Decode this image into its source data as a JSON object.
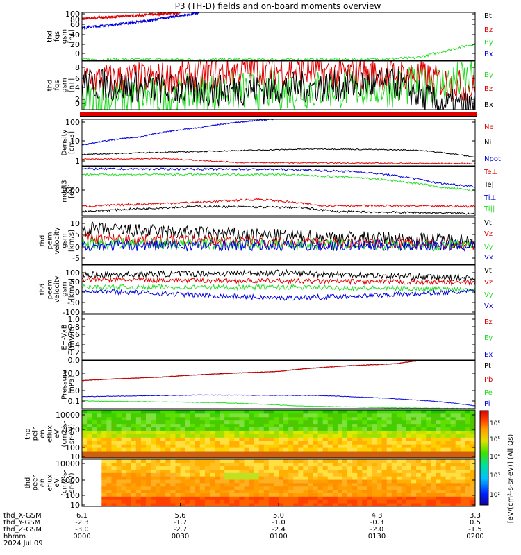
{
  "title": "P3 (TH-D) fields and on-board moments overview",
  "colors": {
    "black": "#000000",
    "red": "#e00000",
    "green": "#22dd22",
    "blue": "#0000dd"
  },
  "chart_data": [
    {
      "type": "line",
      "ylabel": [
        "thd",
        "fgs",
        "gsm",
        "[nT]"
      ],
      "ytick_labels": [
        "100",
        "80",
        "60",
        "40",
        "20",
        "0"
      ],
      "ylim": [
        -10,
        105
      ],
      "series": [
        {
          "name": "Bt",
          "color": "#000000"
        },
        {
          "name": "Bz",
          "color": "#e00000",
          "points": [
            [
              0,
              90
            ],
            [
              0.25,
              104
            ]
          ]
        },
        {
          "name": "By",
          "color": "#22dd22",
          "points": [
            [
              0,
              -8
            ],
            [
              0.7,
              -8
            ],
            [
              0.85,
              -4
            ],
            [
              1,
              30
            ]
          ]
        },
        {
          "name": "Bx",
          "color": "#0000dd",
          "points": [
            [
              0,
              68
            ],
            [
              0.15,
              83
            ],
            [
              0.25,
              97
            ],
            [
              0.3,
              104
            ]
          ]
        }
      ]
    },
    {
      "type": "line",
      "ylabel": [
        "thd",
        "fgs",
        "gsm",
        "[nT]"
      ],
      "ytick_labels": [
        "8",
        "6",
        "4",
        "2",
        "0",
        "-2"
      ],
      "ylim": [
        -3.5,
        8.5
      ],
      "series": [
        {
          "name": "By",
          "color": "#22dd22",
          "points": [
            [
              0,
              -1.5
            ],
            [
              0.35,
              1
            ],
            [
              0.6,
              1.5
            ],
            [
              0.8,
              2
            ],
            [
              1,
              4
            ]
          ]
        },
        {
          "name": "Bz",
          "color": "#e00000",
          "points": [
            [
              0,
              4
            ],
            [
              0.25,
              4.5
            ],
            [
              0.45,
              6.5
            ],
            [
              0.65,
              5.5
            ],
            [
              0.85,
              5
            ],
            [
              1,
              1.5
            ]
          ]
        },
        {
          "name": "Bx",
          "color": "#000000",
          "points": [
            [
              0,
              3
            ],
            [
              0.3,
              1
            ],
            [
              0.55,
              2
            ],
            [
              0.8,
              3
            ],
            [
              0.9,
              -2
            ],
            [
              1,
              -3
            ]
          ]
        }
      ]
    },
    {
      "type": "line",
      "ylabel": [
        "Density",
        "[cm-3]"
      ],
      "ytick_labels": [
        "100",
        "10",
        "1"
      ],
      "ylim_log10": [
        -0.2,
        2
      ],
      "series": [
        {
          "name": "Ne",
          "color": "#e00000",
          "points": [
            [
              0,
              1.3
            ],
            [
              0.2,
              1.4
            ],
            [
              0.4,
              0.9
            ],
            [
              1,
              0.8
            ]
          ]
        },
        {
          "name": "Ni",
          "color": "#000000",
          "points": [
            [
              0,
              2.2
            ],
            [
              0.3,
              3
            ],
            [
              0.6,
              4
            ],
            [
              0.85,
              3.5
            ],
            [
              1,
              1.6
            ]
          ]
        },
        {
          "name": "Npot",
          "color": "#0000dd",
          "points": [
            [
              0,
              6
            ],
            [
              0.15,
              15
            ],
            [
              0.3,
              40
            ],
            [
              0.45,
              90
            ],
            [
              0.52,
              110
            ]
          ]
        }
      ]
    },
    {
      "type": "line",
      "ylabel": [
        "moqt3",
        "[eV]"
      ],
      "ytick_labels": [
        "1000"
      ],
      "ylim_log10": [
        1.6,
        3.7
      ],
      "series": [
        {
          "name": "Te⊥",
          "color": "#e00000",
          "points": [
            [
              0,
              100
            ],
            [
              0.3,
              150
            ],
            [
              0.45,
              200
            ],
            [
              0.6,
              110
            ],
            [
              1,
              100
            ]
          ]
        },
        {
          "name": "Te||",
          "color": "#000000",
          "points": [
            [
              0,
              60
            ],
            [
              0.3,
              100
            ],
            [
              0.55,
              90
            ],
            [
              0.65,
              60
            ],
            [
              1,
              50
            ]
          ]
        },
        {
          "name": "Ti⊥",
          "color": "#0000dd",
          "points": [
            [
              0,
              4000
            ],
            [
              0.5,
              3800
            ],
            [
              0.7,
              3000
            ],
            [
              0.9,
              1000
            ],
            [
              1,
              700
            ]
          ]
        },
        {
          "name": "Ti||",
          "color": "#22dd22",
          "points": [
            [
              0,
              2300
            ],
            [
              0.5,
              2300
            ],
            [
              0.7,
              1700
            ],
            [
              0.9,
              700
            ],
            [
              1,
              450
            ]
          ]
        }
      ]
    },
    {
      "type": "line",
      "ylabel": [
        "thd",
        "peim",
        "velocity",
        "gsm",
        "[km/s]"
      ],
      "ytick_labels": [
        "10",
        "5",
        "0",
        "-5"
      ],
      "ylim": [
        -8,
        12
      ],
      "series": [
        {
          "name": "Vt",
          "color": "#000000",
          "points": [
            [
              0,
              7
            ],
            [
              0.5,
              4
            ],
            [
              1,
              2
            ]
          ]
        },
        {
          "name": "Vz",
          "color": "#e00000",
          "points": [
            [
              0,
              3
            ],
            [
              1,
              0
            ]
          ]
        },
        {
          "name": "Vy",
          "color": "#22dd22",
          "points": [
            [
              0,
              1
            ],
            [
              1,
              0
            ]
          ]
        },
        {
          "name": "Vx",
          "color": "#0000dd",
          "points": [
            [
              0,
              0
            ],
            [
              1,
              0
            ]
          ]
        }
      ]
    },
    {
      "type": "line",
      "ylabel": [
        "thd",
        "peem",
        "velocity",
        "gsm",
        "[km/s]"
      ],
      "ytick_labels": [
        "100",
        "50",
        "0",
        "-50",
        "-100"
      ],
      "ylim": [
        -110,
        110
      ],
      "series": [
        {
          "name": "Vt",
          "color": "#000000",
          "points": [
            [
              0,
              65
            ],
            [
              0.5,
              75
            ],
            [
              1,
              50
            ]
          ]
        },
        {
          "name": "Vz",
          "color": "#e00000",
          "points": [
            [
              0,
              45
            ],
            [
              1,
              30
            ]
          ]
        },
        {
          "name": "Vy",
          "color": "#22dd22",
          "points": [
            [
              0,
              10
            ],
            [
              0.5,
              10
            ],
            [
              1,
              0
            ]
          ]
        },
        {
          "name": "Vx",
          "color": "#0000dd",
          "points": [
            [
              0,
              -5
            ],
            [
              0.5,
              -40
            ],
            [
              0.7,
              -30
            ],
            [
              1,
              -10
            ]
          ]
        }
      ]
    },
    {
      "type": "line",
      "ylabel": [
        "E=-VxB",
        "[mV/m]"
      ],
      "ytick_labels": [
        "1.0",
        "0.8",
        "0.6",
        "0.4",
        "0.2",
        "0.0"
      ],
      "ylim": [
        0,
        1
      ],
      "series": [
        {
          "name": "Ez",
          "color": "#e00000"
        },
        {
          "name": "Ey",
          "color": "#22dd22"
        },
        {
          "name": "Ex",
          "color": "#0000dd"
        }
      ]
    },
    {
      "type": "line",
      "ylabel": [
        "Pressure",
        "[nPa]"
      ],
      "ytick_labels": [
        "10.0",
        "1.0",
        "0.1"
      ],
      "ylim_log10": [
        -1.4,
        1.8
      ],
      "series": [
        {
          "name": "Pt",
          "color": "#000000",
          "points": [
            [
              0,
              3
            ],
            [
              0.2,
              5
            ],
            [
              0.5,
              12
            ],
            [
              0.8,
              40
            ],
            [
              0.85,
              60
            ]
          ]
        },
        {
          "name": "Pb",
          "color": "#e00000",
          "points": [
            [
              0,
              3
            ],
            [
              0.2,
              5
            ],
            [
              0.5,
              12
            ],
            [
              0.8,
              40
            ],
            [
              0.85,
              60
            ]
          ]
        },
        {
          "name": "Pe",
          "color": "#22dd22",
          "points": [
            [
              0,
              0.13
            ],
            [
              0.35,
              0.1
            ],
            [
              0.55,
              0.06
            ],
            [
              0.8,
              0.045
            ],
            [
              1,
              0.04
            ]
          ]
        },
        {
          "name": "Pi",
          "color": "#0000dd",
          "points": [
            [
              0,
              0.25
            ],
            [
              0.3,
              0.32
            ],
            [
              0.6,
              0.3
            ],
            [
              0.85,
              0.15
            ],
            [
              1,
              0.06
            ]
          ]
        }
      ]
    },
    {
      "type": "heatmap",
      "ylabel": [
        "thd",
        "peir",
        "en",
        "eflux",
        "eV",
        "(cm2-s-",
        "sr-eV)"
      ],
      "ytick_labels": [
        "10000",
        "1000",
        "100",
        "10"
      ]
    },
    {
      "type": "heatmap",
      "ylabel": [
        "thd",
        "peer",
        "en",
        "eflux",
        "eV",
        "(cm2-s-",
        "sr-eV)"
      ],
      "ytick_labels": [
        "10000",
        "1000",
        "100",
        "10"
      ]
    }
  ],
  "colorbar": {
    "label": "[eV/(cm²-s-sr-eV)] (All Qs)",
    "tick_labels": [
      "10⁶",
      "10⁵",
      "10⁴",
      "10³",
      "10²"
    ]
  },
  "xaxis": {
    "row_labels": [
      "thd_X-GSM",
      "thd_Y-GSM",
      "thd_Z-GSM",
      "hhmm",
      "2024 Jul 09"
    ],
    "ticks": [
      {
        "pos": 0,
        "vals": [
          "6.1",
          "-2.3",
          "-3.0",
          "0000"
        ]
      },
      {
        "pos": 0.25,
        "vals": [
          "5.6",
          "-1.7",
          "-2.7",
          "0030"
        ]
      },
      {
        "pos": 0.5,
        "vals": [
          "5.0",
          "-1.0",
          "-2.4",
          "0100"
        ]
      },
      {
        "pos": 0.75,
        "vals": [
          "4.3",
          "-0.3",
          "-2.0",
          "0130"
        ]
      },
      {
        "pos": 1,
        "vals": [
          "3.3",
          "0.5",
          "-1.5",
          "0200"
        ]
      }
    ]
  }
}
